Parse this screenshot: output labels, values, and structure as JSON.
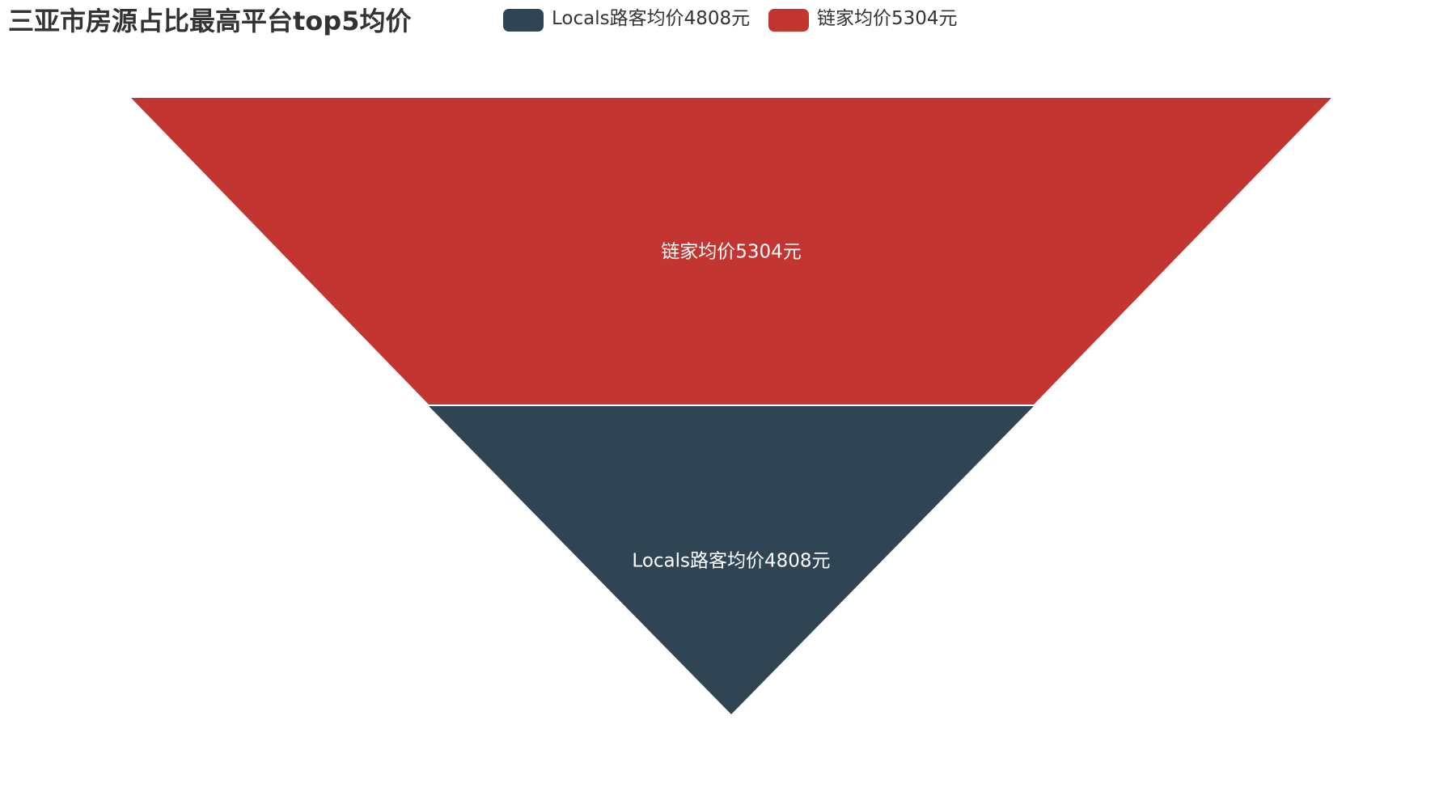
{
  "chart_data": {
    "type": "funnel",
    "title": "三亚市房源占比最高平台top5均价",
    "categories": [
      "链家均价5304元",
      "Locals路客均价4808元"
    ],
    "values": [
      5304,
      4808
    ],
    "legend": {
      "placement": "top",
      "items": [
        {
          "label": "Locals路客均价4808元",
          "color": "#2f4554"
        },
        {
          "label": "链家均价5304元",
          "color": "#c23531"
        }
      ]
    },
    "slices": [
      {
        "label": "链家均价5304元",
        "value": 5304,
        "color": "#c23531"
      },
      {
        "label": "Locals路客均价4808元",
        "value": 4808,
        "color": "#2f4554"
      }
    ],
    "min": 4304,
    "max": 5304,
    "grid": false
  }
}
